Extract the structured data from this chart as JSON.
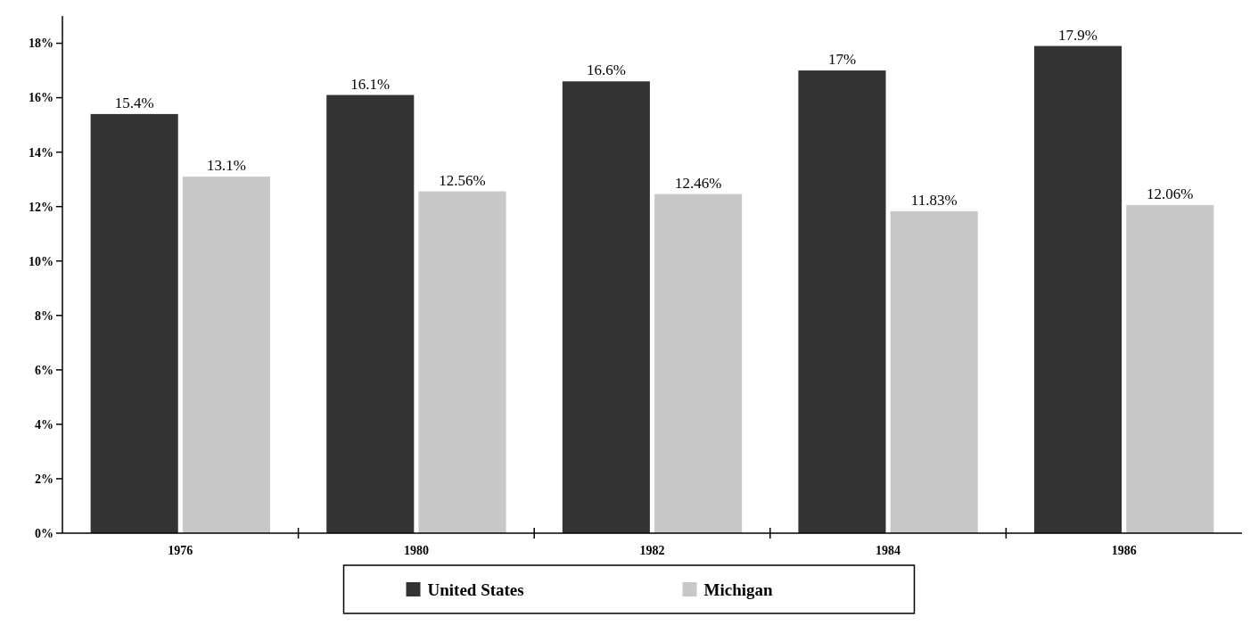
{
  "chart_data": {
    "type": "bar",
    "categories": [
      "1976",
      "1980",
      "1982",
      "1984",
      "1986"
    ],
    "series": [
      {
        "name": "United States",
        "color": "#333333",
        "values": [
          15.4,
          16.1,
          16.6,
          17,
          17.9
        ],
        "value_labels": [
          "15.4%",
          "16.1%",
          "16.6%",
          "17%",
          "17.9%"
        ]
      },
      {
        "name": "Michigan",
        "color": "#c8c8c8",
        "values": [
          13.1,
          12.56,
          12.46,
          11.83,
          12.06
        ],
        "value_labels": [
          "13.1%",
          "12.56%",
          "12.46%",
          "11.83%",
          "12.06%"
        ]
      }
    ],
    "ylim": [
      0,
      19
    ],
    "yticks": [
      {
        "value": 0,
        "label": "0%"
      },
      {
        "value": 2,
        "label": "2%"
      },
      {
        "value": 4,
        "label": "4%"
      },
      {
        "value": 6,
        "label": "6%"
      },
      {
        "value": 8,
        "label": "8%"
      },
      {
        "value": 10,
        "label": "10%"
      },
      {
        "value": 12,
        "label": "12%"
      },
      {
        "value": 14,
        "label": "14%"
      },
      {
        "value": 16,
        "label": "16%"
      },
      {
        "value": 18,
        "label": "18%"
      }
    ],
    "grid": false,
    "legend": "bottom"
  }
}
